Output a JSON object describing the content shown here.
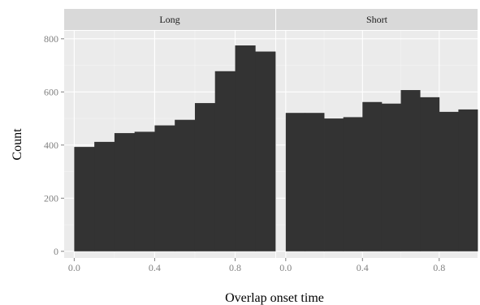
{
  "chart_data": {
    "type": "bar",
    "style": "faceted histogram",
    "xlabel": "Overlap onset time",
    "ylabel": "Count",
    "ylim": [
      -25,
      830
    ],
    "y_ticks": [
      0,
      200,
      400,
      600,
      800
    ],
    "x_ticks": [
      0.0,
      0.4,
      0.8
    ],
    "x_tick_labels": [
      "0.0",
      "0.4",
      "0.8"
    ],
    "y_tick_labels": [
      "0",
      "200",
      "400",
      "600",
      "800"
    ],
    "grid": true,
    "colors": {
      "panel_background": "#ebebeb",
      "strip_background": "#d9d9d9",
      "bar_fill": "#333333",
      "grid_major": "#ffffff",
      "grid_minor": "#f5f5f5"
    },
    "panels": [
      {
        "name": "Long",
        "xlim": [
          -0.05,
          1.0
        ],
        "bins": [
          {
            "x0": 0.0,
            "x1": 0.1,
            "value": 393
          },
          {
            "x0": 0.1,
            "x1": 0.2,
            "value": 412
          },
          {
            "x0": 0.2,
            "x1": 0.3,
            "value": 445
          },
          {
            "x0": 0.3,
            "x1": 0.4,
            "value": 450
          },
          {
            "x0": 0.4,
            "x1": 0.5,
            "value": 474
          },
          {
            "x0": 0.5,
            "x1": 0.6,
            "value": 495
          },
          {
            "x0": 0.6,
            "x1": 0.7,
            "value": 558
          },
          {
            "x0": 0.7,
            "x1": 0.8,
            "value": 678
          },
          {
            "x0": 0.8,
            "x1": 0.9,
            "value": 775
          },
          {
            "x0": 0.9,
            "x1": 1.0,
            "value": 752
          }
        ]
      },
      {
        "name": "Short",
        "xlim": [
          -0.05,
          1.0
        ],
        "bins": [
          {
            "x0": 0.0,
            "x1": 0.1,
            "value": 521
          },
          {
            "x0": 0.1,
            "x1": 0.2,
            "value": 521
          },
          {
            "x0": 0.2,
            "x1": 0.3,
            "value": 500
          },
          {
            "x0": 0.3,
            "x1": 0.4,
            "value": 505
          },
          {
            "x0": 0.4,
            "x1": 0.5,
            "value": 562
          },
          {
            "x0": 0.5,
            "x1": 0.6,
            "value": 556
          },
          {
            "x0": 0.6,
            "x1": 0.7,
            "value": 607
          },
          {
            "x0": 0.7,
            "x1": 0.8,
            "value": 580
          },
          {
            "x0": 0.8,
            "x1": 0.9,
            "value": 525
          },
          {
            "x0": 0.9,
            "x1": 1.0,
            "value": 534
          }
        ]
      }
    ]
  }
}
